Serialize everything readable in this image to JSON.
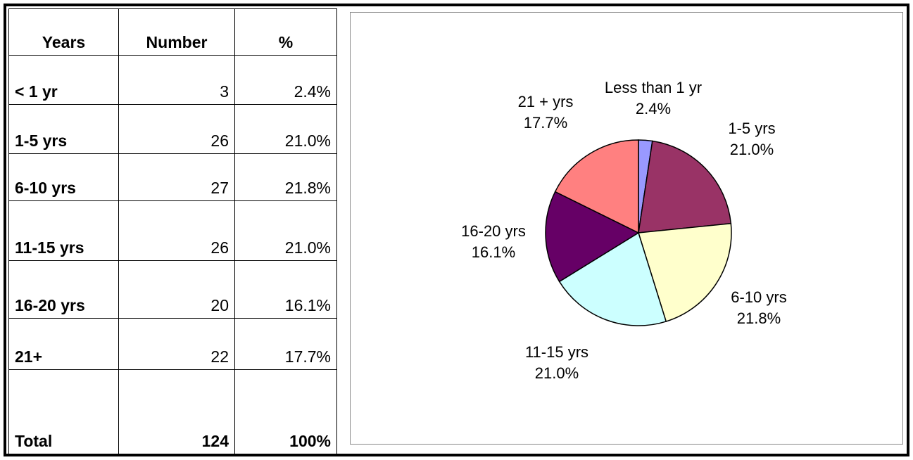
{
  "table": {
    "header": [
      "Years",
      "Number",
      "%"
    ],
    "rows": [
      [
        "< 1 yr",
        "3",
        "2.4%"
      ],
      [
        "1-5 yrs",
        "26",
        "21.0%"
      ],
      [
        "6-10 yrs",
        "27",
        "21.8%"
      ],
      [
        "11-15 yrs",
        "26",
        "21.0%"
      ],
      [
        "16-20 yrs",
        "20",
        "16.1%"
      ],
      [
        "21+",
        "22",
        "17.7%"
      ]
    ],
    "total": [
      "Total",
      "124",
      "100%"
    ]
  },
  "chart_data": {
    "type": "pie",
    "categories": [
      "Less than 1 yr",
      "1-5 yrs",
      "6-10 yrs",
      "11-15 yrs",
      "16-20 yrs",
      "21 + yrs"
    ],
    "values": [
      2.4,
      21.0,
      21.8,
      21.0,
      16.1,
      17.7
    ],
    "value_labels": [
      "2.4%",
      "21.0%",
      "21.8%",
      "21.0%",
      "16.1%",
      "17.7%"
    ],
    "colors": [
      "#9999ff",
      "#993366",
      "#ffffcc",
      "#ccffff",
      "#660066",
      "#ff8080"
    ]
  }
}
